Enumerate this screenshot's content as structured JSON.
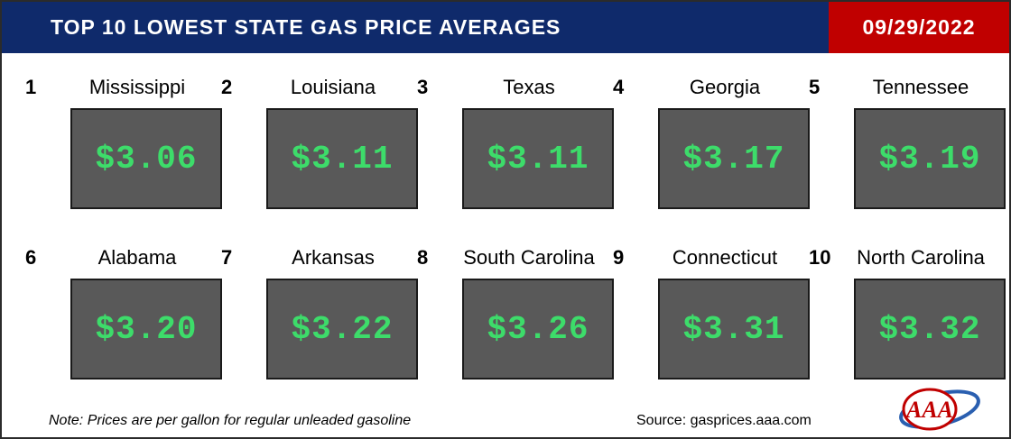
{
  "header": {
    "title": "TOP 10 LOWEST STATE GAS PRICE AVERAGES",
    "date": "09/29/2022"
  },
  "states": [
    {
      "rank": "1",
      "name": "Mississippi",
      "price": "$3.06"
    },
    {
      "rank": "2",
      "name": "Louisiana",
      "price": "$3.11"
    },
    {
      "rank": "3",
      "name": "Texas",
      "price": "$3.11"
    },
    {
      "rank": "4",
      "name": "Georgia",
      "price": "$3.17"
    },
    {
      "rank": "5",
      "name": "Tennessee",
      "price": "$3.19"
    },
    {
      "rank": "6",
      "name": "Alabama",
      "price": "$3.20"
    },
    {
      "rank": "7",
      "name": "Arkansas",
      "price": "$3.22"
    },
    {
      "rank": "8",
      "name": "South Carolina",
      "price": "$3.26"
    },
    {
      "rank": "9",
      "name": "Connecticut",
      "price": "$3.31"
    },
    {
      "rank": "10",
      "name": "North Carolina",
      "price": "$3.32"
    }
  ],
  "footer": {
    "note": "Note: Prices are per gallon for regular unleaded gasoline",
    "source": "Source: gasprices.aaa.com"
  },
  "logo": {
    "text": "AAA",
    "icon": "aaa-logo-icon"
  },
  "colors": {
    "header_bg": "#0f2a6b",
    "date_bg": "#c00000",
    "box_bg": "#595959",
    "price_text": "#3ddc6a"
  }
}
